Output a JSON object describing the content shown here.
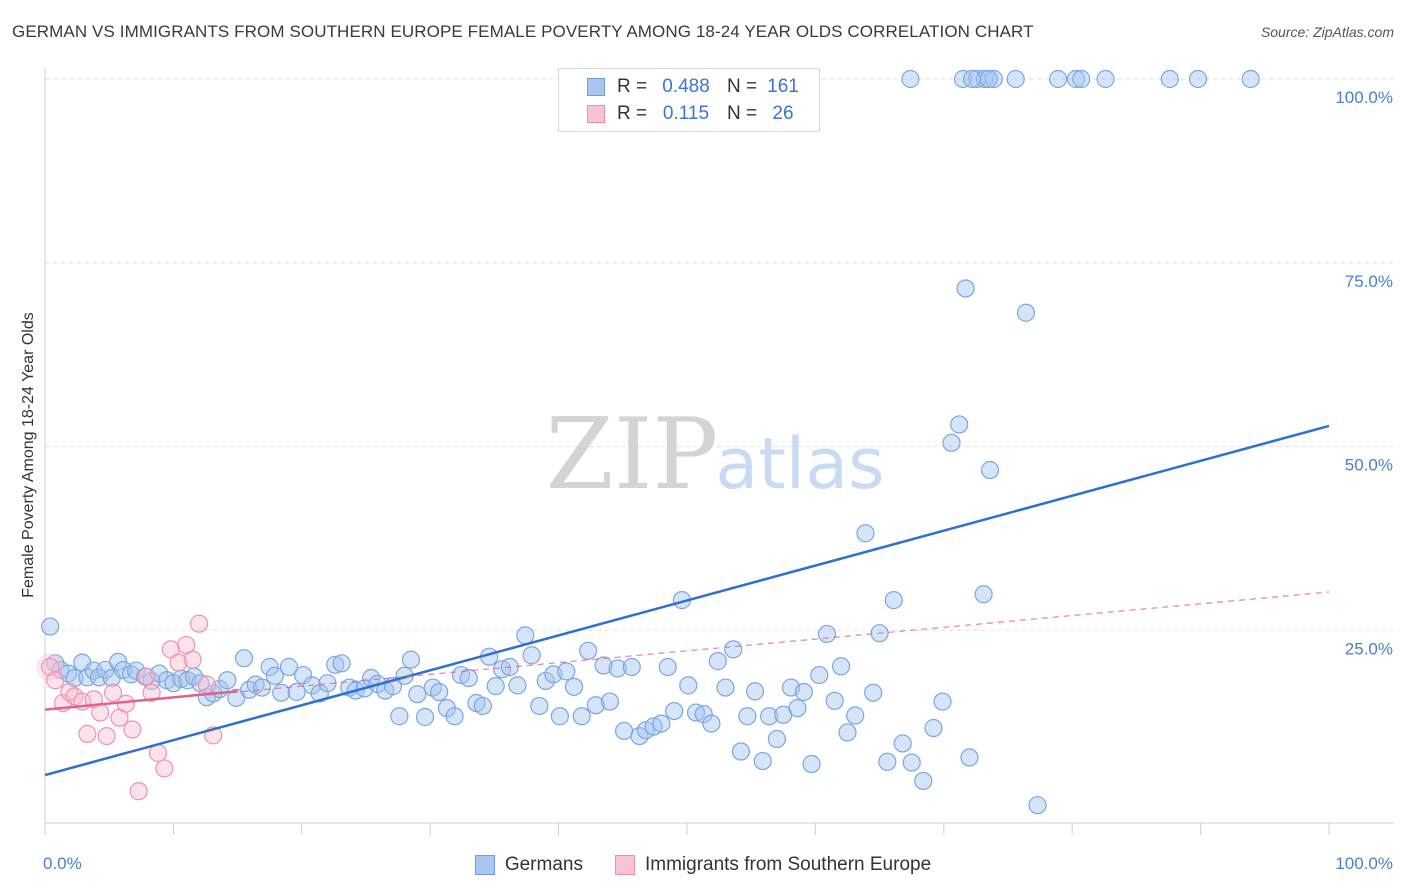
{
  "title": "GERMAN VS IMMIGRANTS FROM SOUTHERN EUROPE FEMALE POVERTY AMONG 18-24 YEAR OLDS CORRELATION CHART",
  "source": "Source: ZipAtlas.com",
  "watermark": {
    "zip": "ZIP",
    "atlas": "atlas"
  },
  "legend": {
    "rows": [
      {
        "r_label": "R =",
        "r_value": "0.488",
        "n_label": "N =",
        "n_value": "161",
        "color": "#a9c6f2",
        "border": "#6f9de0"
      },
      {
        "r_label": "R =",
        "r_value": "0.115",
        "n_label": "N =",
        "n_value": "26",
        "color": "#f8c4d4",
        "border": "#ec8fab"
      }
    ]
  },
  "bottom_legend": {
    "germans": "Germans",
    "immigrants": "Immigrants from Southern Europe"
  },
  "colors": {
    "blue_fill": "rgba(164,195,240,0.45)",
    "blue_stroke": "#7aa6e3",
    "blue_line": "#2f6fd1",
    "pink_fill": "rgba(248,190,208,0.45)",
    "pink_stroke": "#ee93b0",
    "pink_line": "#e0628e"
  },
  "chart_data": {
    "type": "scatter",
    "title": "GERMAN VS IMMIGRANTS FROM SOUTHERN EUROPE FEMALE POVERTY AMONG 18-24 YEAR OLDS CORRELATION CHART",
    "xlabel": "",
    "ylabel": "Female Poverty Among 18-24 Year Olds",
    "xlim": [
      0,
      100
    ],
    "ylim": [
      0,
      100
    ],
    "x_tick_labels": [
      "0.0%",
      "100.0%"
    ],
    "y_tick_labels": [
      "100.0%",
      "75.0%",
      "50.0%",
      "25.0%"
    ],
    "y_ticks": [
      100,
      75,
      50,
      25
    ],
    "grid": "horizontal dashed",
    "legend_position": "top-center",
    "series": [
      {
        "name": "Germans",
        "trend": {
          "x": [
            0,
            100
          ],
          "y": [
            5.3,
            52.8
          ]
        },
        "points": [
          [
            0.4,
            25.5
          ],
          [
            0.8,
            20.5
          ],
          [
            1.2,
            19.6
          ],
          [
            1.8,
            19.1
          ],
          [
            2.3,
            18.5
          ],
          [
            2.9,
            20.6
          ],
          [
            3.3,
            18.6
          ],
          [
            3.8,
            19.5
          ],
          [
            4.2,
            18.6
          ],
          [
            4.7,
            19.6
          ],
          [
            5.2,
            18.5
          ],
          [
            5.7,
            20.7
          ],
          [
            6.1,
            19.6
          ],
          [
            6.7,
            19.0
          ],
          [
            7.1,
            19.5
          ],
          [
            7.8,
            18.7
          ],
          [
            8.3,
            18.1
          ],
          [
            8.9,
            19.1
          ],
          [
            9.5,
            18.2
          ],
          [
            10.0,
            17.8
          ],
          [
            10.6,
            18.4
          ],
          [
            11.1,
            18.2
          ],
          [
            11.6,
            18.7
          ],
          [
            12.1,
            17.8
          ],
          [
            12.6,
            15.9
          ],
          [
            13.1,
            16.4
          ],
          [
            13.6,
            17.0
          ],
          [
            14.2,
            18.2
          ],
          [
            14.9,
            15.8
          ],
          [
            15.5,
            21.2
          ],
          [
            15.9,
            16.9
          ],
          [
            16.4,
            17.6
          ],
          [
            16.9,
            17.2
          ],
          [
            17.5,
            20.0
          ],
          [
            17.9,
            18.8
          ],
          [
            18.4,
            16.5
          ],
          [
            19.0,
            20.0
          ],
          [
            19.6,
            16.6
          ],
          [
            20.1,
            18.9
          ],
          [
            20.8,
            17.5
          ],
          [
            21.4,
            16.4
          ],
          [
            22.0,
            17.8
          ],
          [
            22.6,
            20.3
          ],
          [
            23.1,
            20.5
          ],
          [
            23.7,
            17.2
          ],
          [
            24.2,
            16.8
          ],
          [
            24.9,
            17.1
          ],
          [
            25.4,
            18.5
          ],
          [
            25.9,
            17.7
          ],
          [
            26.5,
            16.8
          ],
          [
            27.1,
            17.4
          ],
          [
            27.6,
            13.3
          ],
          [
            28.0,
            18.8
          ],
          [
            28.5,
            21.0
          ],
          [
            29.0,
            16.3
          ],
          [
            29.6,
            13.2
          ],
          [
            30.2,
            17.2
          ],
          [
            30.7,
            16.6
          ],
          [
            31.3,
            14.4
          ],
          [
            31.9,
            13.3
          ],
          [
            32.4,
            18.9
          ],
          [
            33.0,
            18.5
          ],
          [
            33.6,
            15.1
          ],
          [
            34.1,
            14.7
          ],
          [
            34.6,
            21.4
          ],
          [
            35.1,
            17.4
          ],
          [
            35.6,
            19.7
          ],
          [
            36.2,
            20.0
          ],
          [
            36.8,
            17.5
          ],
          [
            37.4,
            24.3
          ],
          [
            37.9,
            21.6
          ],
          [
            38.5,
            14.7
          ],
          [
            39.0,
            18.1
          ],
          [
            39.6,
            19.0
          ],
          [
            40.1,
            13.3
          ],
          [
            40.6,
            19.4
          ],
          [
            41.2,
            17.3
          ],
          [
            41.8,
            13.3
          ],
          [
            42.3,
            22.2
          ],
          [
            42.9,
            14.8
          ],
          [
            43.5,
            20.2
          ],
          [
            44.0,
            15.3
          ],
          [
            44.6,
            19.8
          ],
          [
            45.1,
            11.3
          ],
          [
            45.7,
            20.0
          ],
          [
            46.3,
            10.6
          ],
          [
            46.8,
            11.4
          ],
          [
            47.4,
            11.9
          ],
          [
            48.0,
            12.3
          ],
          [
            48.5,
            20.0
          ],
          [
            49.0,
            14.0
          ],
          [
            49.6,
            29.1
          ],
          [
            50.1,
            17.5
          ],
          [
            50.7,
            13.8
          ],
          [
            51.3,
            13.6
          ],
          [
            51.9,
            12.3
          ],
          [
            52.4,
            20.8
          ],
          [
            53.0,
            17.2
          ],
          [
            53.6,
            22.4
          ],
          [
            54.2,
            8.5
          ],
          [
            54.7,
            13.3
          ],
          [
            55.3,
            16.7
          ],
          [
            55.9,
            7.2
          ],
          [
            56.4,
            13.3
          ],
          [
            57.0,
            10.2
          ],
          [
            57.5,
            13.5
          ],
          [
            58.1,
            17.2
          ],
          [
            58.6,
            14.4
          ],
          [
            59.1,
            16.6
          ],
          [
            59.7,
            6.8
          ],
          [
            60.3,
            18.9
          ],
          [
            60.9,
            24.5
          ],
          [
            61.5,
            15.4
          ],
          [
            62.0,
            20.1
          ],
          [
            62.5,
            11.1
          ],
          [
            63.1,
            13.4
          ],
          [
            63.9,
            38.2
          ],
          [
            64.5,
            16.5
          ],
          [
            65.0,
            24.6
          ],
          [
            65.6,
            7.1
          ],
          [
            66.1,
            29.1
          ],
          [
            66.8,
            9.6
          ],
          [
            67.5,
            7.0
          ],
          [
            68.4,
            4.5
          ],
          [
            69.2,
            11.7
          ],
          [
            69.9,
            15.3
          ],
          [
            70.6,
            50.5
          ],
          [
            71.2,
            53.0
          ],
          [
            72.0,
            7.7
          ],
          [
            73.1,
            29.9
          ],
          [
            73.6,
            46.8
          ],
          [
            71.7,
            71.5
          ],
          [
            76.4,
            68.2
          ],
          [
            77.3,
            1.2
          ],
          [
            67.4,
            100
          ],
          [
            71.5,
            100
          ],
          [
            72.6,
            100
          ],
          [
            73.2,
            100
          ],
          [
            73.9,
            100
          ],
          [
            75.6,
            100
          ],
          [
            78.9,
            100
          ],
          [
            80.3,
            100
          ],
          [
            80.7,
            100
          ],
          [
            82.6,
            100
          ],
          [
            87.6,
            100
          ],
          [
            89.8,
            100
          ],
          [
            93.9,
            100
          ],
          [
            73.5,
            100
          ],
          [
            72.2,
            100
          ]
        ]
      },
      {
        "name": "Immigrants from Southern Europe",
        "trend": {
          "x": [
            0,
            15
          ],
          "y": [
            14.2,
            16.7
          ]
        },
        "trend_extended": {
          "x": [
            0,
            100
          ],
          "y": [
            14.2,
            30.2
          ]
        },
        "points": [
          [
            0.4,
            20.0
          ],
          [
            0.8,
            18.2
          ],
          [
            1.4,
            15.1
          ],
          [
            1.9,
            16.6
          ],
          [
            2.3,
            16.0
          ],
          [
            2.9,
            15.3
          ],
          [
            3.3,
            10.9
          ],
          [
            3.8,
            15.6
          ],
          [
            4.3,
            13.8
          ],
          [
            4.8,
            10.6
          ],
          [
            5.3,
            16.5
          ],
          [
            5.8,
            13.1
          ],
          [
            6.3,
            15.0
          ],
          [
            6.8,
            11.5
          ],
          [
            7.3,
            3.1
          ],
          [
            7.9,
            18.7
          ],
          [
            8.3,
            16.5
          ],
          [
            8.8,
            8.3
          ],
          [
            9.3,
            6.2
          ],
          [
            9.8,
            22.4
          ],
          [
            10.4,
            20.6
          ],
          [
            11.0,
            23.0
          ],
          [
            11.5,
            21.0
          ],
          [
            12.0,
            25.9
          ],
          [
            12.6,
            17.6
          ],
          [
            13.1,
            10.7
          ]
        ]
      }
    ]
  }
}
